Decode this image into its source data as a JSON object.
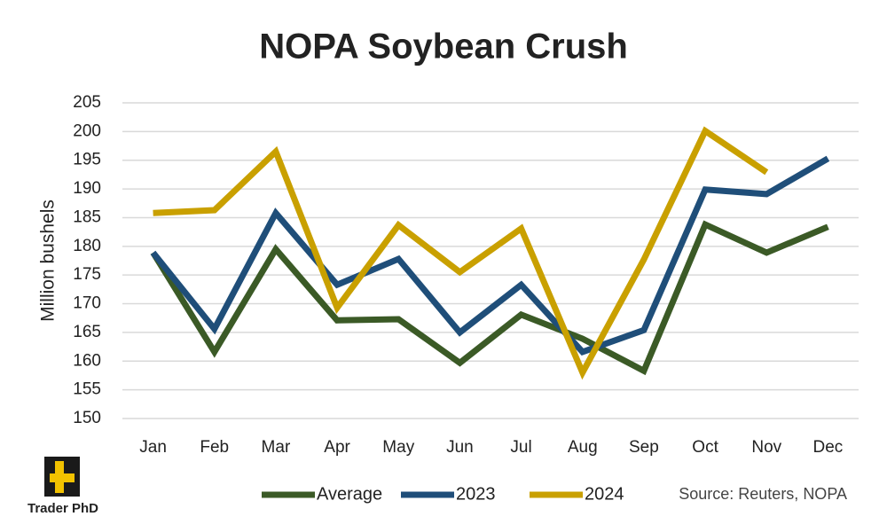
{
  "chart_data": {
    "type": "line",
    "title": "NOPA Soybean Crush",
    "y_label": "Million bushels",
    "categories": [
      "Jan",
      "Feb",
      "Mar",
      "Apr",
      "May",
      "Jun",
      "Jul",
      "Aug",
      "Sep",
      "Oct",
      "Nov",
      "Dec"
    ],
    "series": [
      {
        "name": "Average",
        "color": "#3b5a26",
        "values": [
          178.9,
          161.6,
          179.5,
          167.1,
          167.3,
          159.7,
          168.1,
          163.9,
          158.3,
          183.8,
          178.9,
          183.4
        ]
      },
      {
        "name": "2023",
        "color": "#1f4e79",
        "values": [
          178.9,
          165.6,
          185.8,
          173.3,
          177.8,
          165.0,
          173.3,
          161.6,
          165.4,
          189.9,
          189.1,
          195.3
        ]
      },
      {
        "name": "2024",
        "color": "#c9a000",
        "values": [
          185.8,
          186.3,
          196.5,
          169.3,
          183.7,
          175.5,
          183.1,
          158.0,
          177.7,
          200.1,
          192.9,
          null
        ]
      }
    ],
    "ylim": [
      150,
      205
    ],
    "yticks": [
      150,
      155,
      160,
      165,
      170,
      175,
      180,
      185,
      190,
      195,
      200,
      205
    ],
    "grid": true,
    "legend": "bottom",
    "source": "Source: Reuters, NOPA",
    "logo": "Trader PhD"
  }
}
